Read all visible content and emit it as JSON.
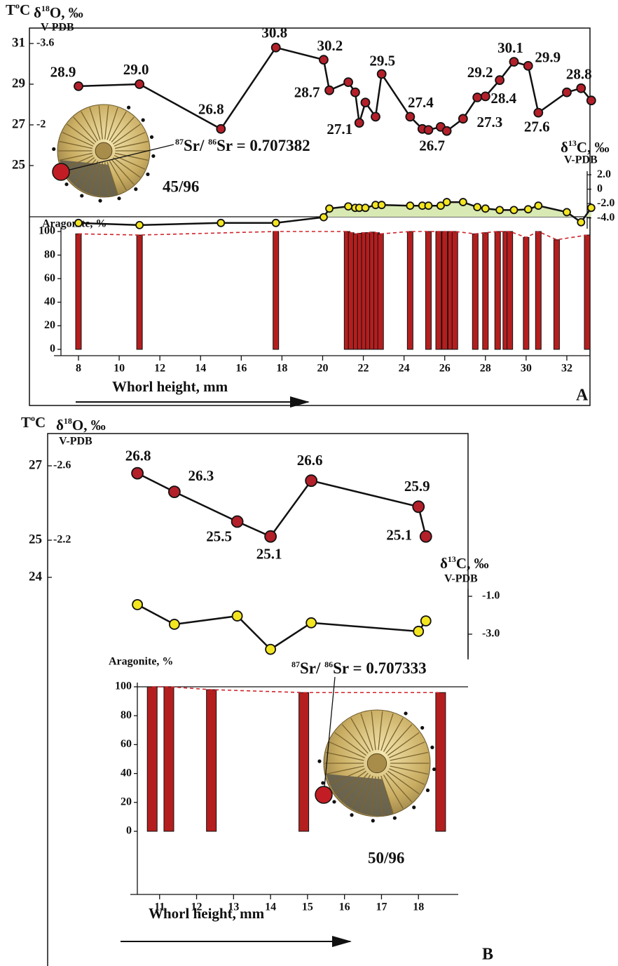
{
  "chart_data": [
    {
      "type": "composite",
      "t_title": [
        "T",
        "o",
        "C"
      ],
      "o18_title": [
        "δ",
        "18",
        "O, ‰"
      ],
      "o18_unit": "V-PDB",
      "c13_title": [
        "δ",
        "13",
        "C, ‰"
      ],
      "c13_unit": "V-PDB",
      "aragonite_title": "Aragonite, %",
      "xlabel": "Whorl height, mm",
      "panel": "A",
      "sr_ratio": [
        "87",
        "Sr/ ",
        "86",
        "Sr = 0.707382"
      ],
      "specimen": "45/96",
      "xlim": [
        8,
        33
      ],
      "xticks": [
        8,
        10,
        12,
        14,
        16,
        18,
        20,
        22,
        24,
        26,
        28,
        30,
        32
      ],
      "ylim": [
        23.5,
        31.75
      ],
      "yticks": [
        25,
        27,
        29,
        31
      ],
      "o18_ticks": [
        {
          "value": 31,
          "label": "-3.6"
        },
        {
          "value": 27,
          "label": "-2"
        }
      ],
      "x": [
        8,
        11,
        15,
        17.7,
        20.05,
        20.33,
        21.26,
        21.6,
        21.8,
        22.1,
        22.6,
        22.9,
        24.3,
        24.9,
        25.2,
        25.8,
        26.1,
        26.9,
        27.6,
        28,
        28.7,
        29.4,
        30.1,
        30.6,
        32,
        32.7,
        33.2
      ],
      "t_values": [
        28.9,
        29,
        26.8,
        30.8,
        30.2,
        28.7,
        29.1,
        28.6,
        27.1,
        28.1,
        27.4,
        29.5,
        27.4,
        26.8,
        26.75,
        26.9,
        26.7,
        27.3,
        28.35,
        28.4,
        29.2,
        30.1,
        29.9,
        27.6,
        28.6,
        28.8,
        28.2
      ],
      "t_value_labels": [
        "28.9",
        "29.0",
        "26.8",
        "30.8",
        "30.2",
        "28.7",
        null,
        null,
        "27.1",
        null,
        null,
        "29.5",
        "27.4",
        null,
        null,
        null,
        "26.7",
        "27.3",
        null,
        "28.4",
        "29.2",
        "30.1",
        "29.9",
        "27.6",
        null,
        "28.8",
        null
      ],
      "c13_ylim": [
        -5.5,
        2.5
      ],
      "c13_yticks": [
        {
          "value": 2,
          "label": "2.0"
        },
        0,
        {
          "value": -2,
          "label": "-2.0"
        },
        {
          "value": -4,
          "label": "-4.0"
        }
      ],
      "c13_values": [
        -4.7,
        -5,
        -4.7,
        -4.7,
        -3.9,
        -2.7,
        -2.4,
        -2.6,
        -2.6,
        -2.6,
        -2.2,
        -2.2,
        -2.3,
        -2.3,
        -2.3,
        -2.3,
        -1.8,
        -1.8,
        -2.5,
        -2.7,
        -2.9,
        -2.9,
        -2.8,
        -2.3,
        -3.2,
        -4.6,
        -2.6
      ],
      "aragonite_ylim": [
        0,
        100
      ],
      "aragonite_yticks": [
        0,
        20,
        40,
        60,
        80,
        100
      ],
      "aragonite_x": [
        8,
        11,
        17.7,
        21.2,
        21.4,
        21.65,
        21.85,
        22.05,
        22.25,
        22.45,
        22.65,
        22.85,
        24.3,
        25.2,
        25.7,
        26,
        26.3,
        26.5,
        27.5,
        28,
        28.6,
        29,
        29.2,
        30,
        30.6,
        31.5,
        33
      ],
      "aragonite_values": [
        98,
        97,
        100,
        100,
        99,
        98,
        98.5,
        99,
        99,
        99.5,
        99,
        98,
        100,
        100,
        100,
        100,
        100,
        100,
        98,
        99,
        100,
        100,
        100,
        95,
        100,
        93,
        97
      ],
      "colors": {
        "t_point": "#b3202a",
        "c13_point": "#f3e620",
        "c13_fill": "#d9e9b3",
        "bar": "#b51e1e",
        "trend": "#d0232a"
      }
    },
    {
      "type": "composite",
      "t_title": [
        "T",
        "o",
        "C"
      ],
      "o18_title": [
        "δ",
        "18",
        "O, ‰"
      ],
      "o18_unit": "V-PDB",
      "c13_title": [
        "δ",
        "13",
        "C, ‰"
      ],
      "c13_unit": "V-PDB",
      "aragonite_title": "Aragonite, %",
      "xlabel": "Whorl height, mm",
      "panel": "B",
      "sr_ratio": [
        "87",
        "Sr/ ",
        "86",
        "Sr = 0.707333"
      ],
      "specimen": "50/96",
      "xlim": [
        10,
        19
      ],
      "xticks": [
        11,
        12,
        13,
        14,
        15,
        16,
        17,
        18
      ],
      "ylim": [
        23.8,
        27.8
      ],
      "yticks": [
        24,
        25,
        27
      ],
      "o18_ticks": [
        {
          "value": 27,
          "label": "-2.6"
        },
        {
          "value": 25,
          "label": "-2.2"
        }
      ],
      "x": [
        10.4,
        11.4,
        13.1,
        14,
        15.1,
        18,
        18.2
      ],
      "t_values": [
        26.8,
        26.3,
        25.5,
        25.1,
        26.6,
        25.9,
        25.1
      ],
      "c13_ylim": [
        -4.2,
        -0.6
      ],
      "c13_yticks": [
        {
          "value": -1,
          "label": "-1.0"
        },
        {
          "value": -3,
          "label": "-3.0"
        }
      ],
      "c13_values": [
        -1.44,
        -2.48,
        -2.04,
        -3.8,
        -2.4,
        -2.85,
        -2.3
      ],
      "aragonite_ylim": [
        0,
        100
      ],
      "aragonite_yticks": [
        0,
        20,
        40,
        60,
        80,
        100
      ],
      "aragonite_x": [
        10.8,
        11.25,
        12.4,
        14.9,
        18.6
      ],
      "aragonite_values": [
        100,
        100,
        98,
        96,
        96
      ],
      "colors": {
        "t_point": "#b3202a",
        "c13_point": "#f3e620",
        "bar": "#b51e1e",
        "trend": "#d0232a"
      }
    }
  ]
}
